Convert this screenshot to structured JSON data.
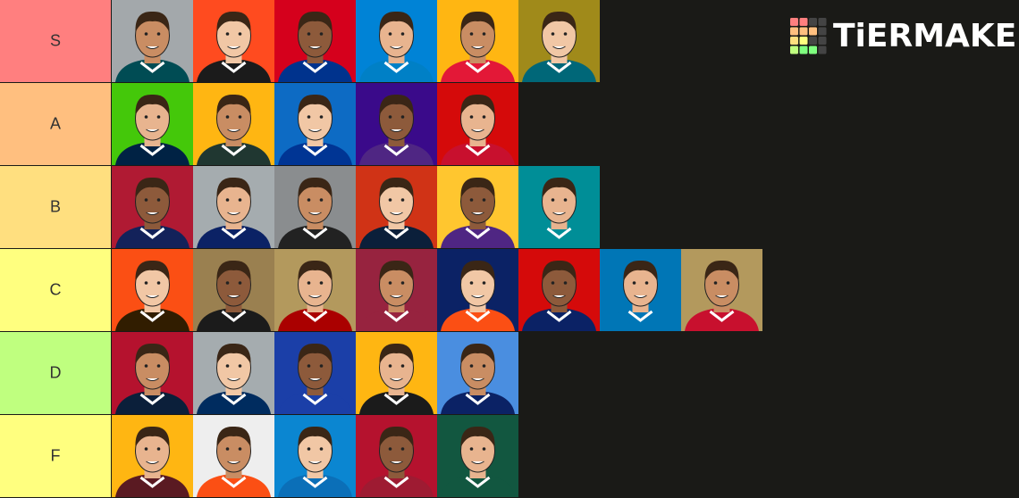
{
  "logo": "TiERMAKER",
  "tiers": [
    {
      "label": "S",
      "color": "#ff7f7f",
      "items": [
        {
          "bg": "#a3a8ab",
          "shirt": "#004c54"
        },
        {
          "bg": "#ff4b1f",
          "shirt": "#1b1b1b"
        },
        {
          "bg": "#d5001c",
          "shirt": "#00338d"
        },
        {
          "bg": "#0083d6",
          "shirt": "#0080c6"
        },
        {
          "bg": "#ffb612",
          "shirt": "#e31837"
        },
        {
          "bg": "#a08a1a",
          "shirt": "#006778"
        }
      ]
    },
    {
      "label": "A",
      "color": "#ffbf7f",
      "items": [
        {
          "bg": "#44c80a",
          "shirt": "#002244"
        },
        {
          "bg": "#ffb612",
          "shirt": "#203731"
        },
        {
          "bg": "#0d6bc4",
          "shirt": "#003594"
        },
        {
          "bg": "#3a0a8a",
          "shirt": "#4f2683"
        },
        {
          "bg": "#d50a0a",
          "shirt": "#c8102e"
        }
      ]
    },
    {
      "label": "B",
      "color": "#ffdf7f",
      "items": [
        {
          "bg": "#b01a33",
          "shirt": "#13225a"
        },
        {
          "bg": "#a5acaf",
          "shirt": "#0b2265"
        },
        {
          "bg": "#8a8d8f",
          "shirt": "#222222"
        },
        {
          "bg": "#d03316",
          "shirt": "#0b1f3a"
        },
        {
          "bg": "#ffc62f",
          "shirt": "#4f2683"
        },
        {
          "bg": "#008e97",
          "shirt": "#008e97"
        }
      ]
    },
    {
      "label": "C",
      "color": "#ffff7f",
      "items": [
        {
          "bg": "#fb4f14",
          "shirt": "#311d00"
        },
        {
          "bg": "#9a8050",
          "shirt": "#1b1b1b"
        },
        {
          "bg": "#b3995d",
          "shirt": "#aa0000"
        },
        {
          "bg": "#97233f",
          "shirt": "#97233f"
        },
        {
          "bg": "#0b2265",
          "shirt": "#fb4f14"
        },
        {
          "bg": "#d50a0a",
          "shirt": "#0b2265"
        },
        {
          "bg": "#0076b6",
          "shirt": "#0076b6"
        },
        {
          "bg": "#b3995d",
          "shirt": "#c8102e"
        }
      ]
    },
    {
      "label": "D",
      "color": "#bfff7f",
      "items": [
        {
          "bg": "#b5122e",
          "shirt": "#0b1f3a"
        },
        {
          "bg": "#a5acaf",
          "shirt": "#002c5f"
        },
        {
          "bg": "#1b3fa8",
          "shirt": "#1b3fa8"
        },
        {
          "bg": "#ffb612",
          "shirt": "#1b1b1b"
        },
        {
          "bg": "#4a8ee0",
          "shirt": "#0b2265"
        }
      ]
    },
    {
      "label": "F",
      "color": "#ffff7f",
      "items": [
        {
          "bg": "#ffb612",
          "shirt": "#5a1a22"
        },
        {
          "bg": "#eeeeee",
          "shirt": "#fb4f14"
        },
        {
          "bg": "#0b86d1",
          "shirt": "#0b6fb8"
        },
        {
          "bg": "#b5122e",
          "shirt": "#9e1b32"
        },
        {
          "bg": "#125740",
          "shirt": "#125740"
        }
      ]
    }
  ]
}
